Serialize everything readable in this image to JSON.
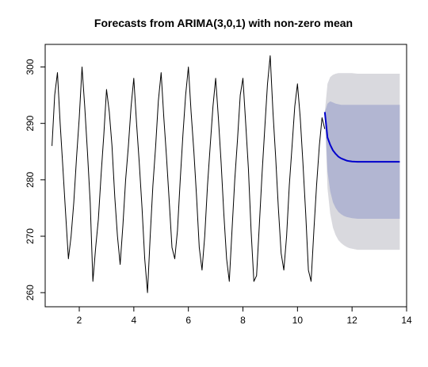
{
  "chart_data": {
    "type": "line",
    "title": "Forecasts from ARIMA(3,0,1) with non-zero mean",
    "xlabel": "",
    "ylabel": "",
    "xlim": [
      0.75,
      14.0
    ],
    "ylim": [
      257.5,
      304.0
    ],
    "x_ticks": [
      2,
      4,
      6,
      8,
      10,
      12,
      14
    ],
    "y_ticks": [
      260,
      270,
      280,
      290,
      300
    ],
    "grid": false,
    "legend": "none",
    "colors": {
      "history": "#000000",
      "forecast": "#0000cc",
      "band_80": "#b2b6d2",
      "band_95": "#d9d9de"
    },
    "series": [
      {
        "kind": "history",
        "x": [
          1.0,
          1.1,
          1.2,
          1.3,
          1.4,
          1.5,
          1.6,
          1.7,
          1.8,
          1.9,
          2.0,
          2.1,
          2.2,
          2.3,
          2.4,
          2.5,
          2.6,
          2.7,
          2.8,
          2.9,
          3.0,
          3.1,
          3.2,
          3.3,
          3.4,
          3.5,
          3.6,
          3.7,
          3.8,
          3.9,
          4.0,
          4.1,
          4.2,
          4.3,
          4.4,
          4.5,
          4.6,
          4.7,
          4.8,
          4.9,
          5.0,
          5.1,
          5.2,
          5.3,
          5.4,
          5.5,
          5.6,
          5.7,
          5.8,
          5.9,
          6.0,
          6.1,
          6.2,
          6.3,
          6.4,
          6.5,
          6.6,
          6.7,
          6.8,
          6.9,
          7.0,
          7.1,
          7.2,
          7.3,
          7.4,
          7.5,
          7.6,
          7.7,
          7.8,
          7.9,
          8.0,
          8.1,
          8.2,
          8.3,
          8.4,
          8.5,
          8.6,
          8.7,
          8.8,
          8.9,
          9.0,
          9.1,
          9.2,
          9.3,
          9.4,
          9.5,
          9.6,
          9.7,
          9.8,
          9.9,
          10.0,
          10.1,
          10.2,
          10.3,
          10.4,
          10.5,
          10.6,
          10.7,
          10.8,
          10.9,
          11.0
        ],
        "y": [
          286,
          295,
          299,
          290,
          282,
          274,
          266,
          270,
          276,
          284,
          291,
          300,
          293,
          285,
          276,
          262,
          268,
          273,
          281,
          288,
          296,
          292,
          286,
          277,
          270,
          265,
          272,
          280,
          286,
          293,
          298,
          290,
          283,
          275,
          266,
          260,
          270,
          279,
          286,
          294,
          299,
          291,
          284,
          276,
          268,
          266,
          271,
          280,
          288,
          295,
          300,
          292,
          285,
          277,
          268,
          264,
          270,
          279,
          286,
          293,
          298,
          291,
          283,
          274,
          266,
          262,
          271,
          280,
          287,
          295,
          298,
          290,
          282,
          271,
          262,
          263,
          272,
          281,
          289,
          297,
          302,
          292,
          284,
          275,
          267,
          264,
          270,
          279,
          286,
          293,
          297,
          291,
          283,
          274,
          264,
          262,
          271,
          279,
          286,
          291,
          289
        ]
      },
      {
        "kind": "forecast",
        "x": [
          11.0,
          11.1,
          11.2,
          11.3,
          11.4,
          11.5,
          11.6,
          11.7,
          11.8,
          11.9,
          12.0,
          12.2,
          12.4,
          12.6,
          12.8,
          13.0,
          13.2,
          13.4,
          13.6,
          13.75
        ],
        "y": [
          292.0,
          287.5,
          286.2,
          285.2,
          284.6,
          284.1,
          283.8,
          283.6,
          283.4,
          283.3,
          283.25,
          283.2,
          283.2,
          283.2,
          283.2,
          283.2,
          283.2,
          283.2,
          283.2,
          283.2
        ]
      }
    ],
    "bands": {
      "x": [
        11.0,
        11.1,
        11.2,
        11.3,
        11.4,
        11.5,
        11.6,
        11.7,
        11.8,
        11.9,
        12.0,
        12.2,
        12.4,
        12.6,
        12.8,
        13.0,
        13.2,
        13.4,
        13.6,
        13.75
      ],
      "lo95": [
        292.0,
        278.5,
        274.0,
        271.5,
        270.2,
        269.3,
        268.8,
        268.4,
        268.1,
        267.9,
        267.8,
        267.6,
        267.6,
        267.6,
        267.6,
        267.6,
        267.6,
        267.6,
        267.6,
        267.6
      ],
      "hi95": [
        292.0,
        297.0,
        298.2,
        298.6,
        298.8,
        298.9,
        298.9,
        298.9,
        298.9,
        298.9,
        298.9,
        298.8,
        298.8,
        298.8,
        298.8,
        298.8,
        298.8,
        298.8,
        298.8,
        298.8
      ],
      "lo80": [
        292.0,
        281.5,
        278.0,
        276.0,
        275.0,
        274.3,
        273.9,
        273.6,
        273.4,
        273.3,
        273.2,
        273.1,
        273.1,
        273.1,
        273.1,
        273.1,
        273.1,
        273.1,
        273.1,
        273.1
      ],
      "hi80": [
        292.0,
        293.5,
        293.9,
        293.7,
        293.5,
        293.4,
        293.3,
        293.3,
        293.3,
        293.3,
        293.3,
        293.3,
        293.3,
        293.3,
        293.3,
        293.3,
        293.3,
        293.3,
        293.3,
        293.3
      ]
    }
  }
}
